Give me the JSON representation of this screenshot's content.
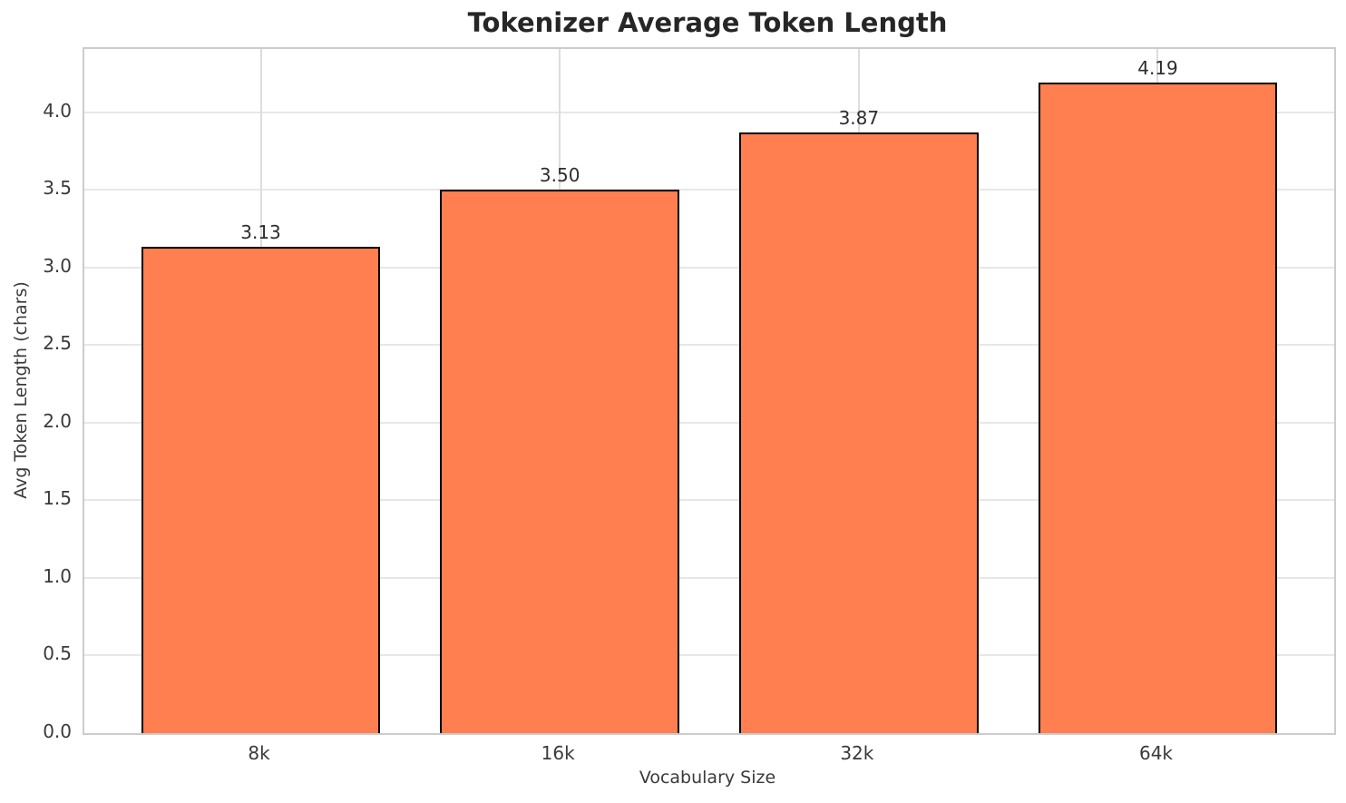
{
  "chart_data": {
    "type": "bar",
    "title": "Tokenizer Average Token Length",
    "xlabel": "Vocabulary Size",
    "ylabel": "Avg Token Length (chars)",
    "categories": [
      "8k",
      "16k",
      "32k",
      "64k"
    ],
    "values": [
      3.13,
      3.5,
      3.87,
      4.19
    ],
    "value_labels": [
      "3.13",
      "3.50",
      "3.87",
      "4.19"
    ],
    "ytick_labels": [
      "0.0",
      "0.5",
      "1.0",
      "1.5",
      "2.0",
      "2.5",
      "3.0",
      "3.5",
      "4.0"
    ],
    "yticks": [
      0.0,
      0.5,
      1.0,
      1.5,
      2.0,
      2.5,
      3.0,
      3.5,
      4.0
    ],
    "ylim": [
      0,
      4.407
    ],
    "xlim": [
      -0.59,
      3.59
    ],
    "bar_width_units": 0.8,
    "grid": "on",
    "legend": "none",
    "colors": {
      "bar_fill": "#FF7F50",
      "bar_edge": "#000000",
      "grid_horizontal": "#E7E7E7",
      "grid_vertical": "#DDDDDD",
      "spine": "#CCCCCC",
      "title_text": "#262626",
      "tick_text": "#3A3A3A",
      "value_label_text": "#2E2E2E",
      "background": "#FFFFFF"
    }
  }
}
